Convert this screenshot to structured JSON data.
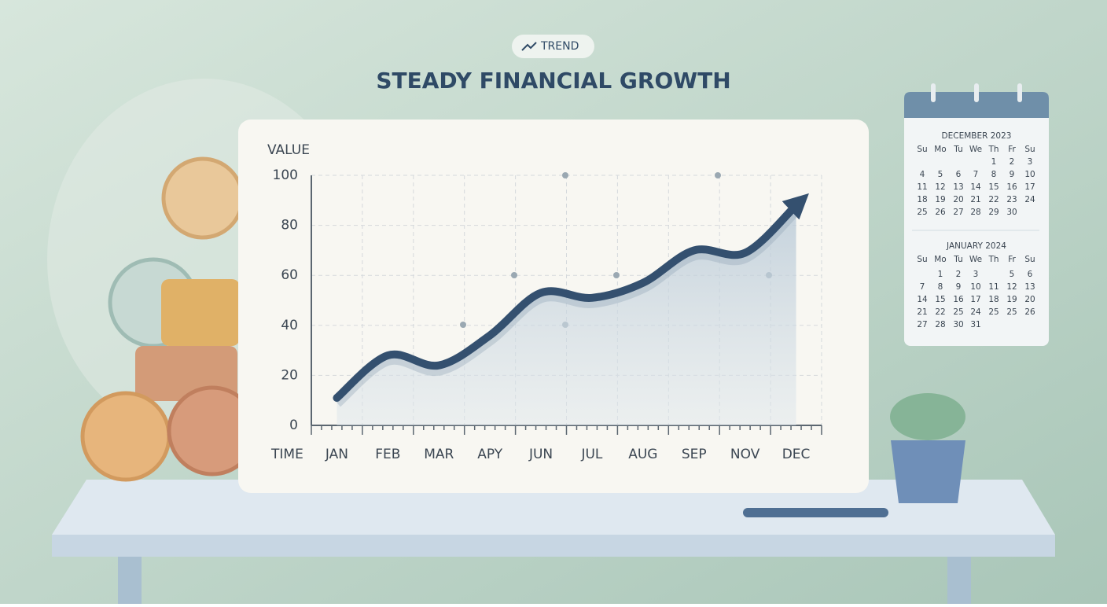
{
  "badge": "TREND",
  "chart_data": {
    "type": "line",
    "title": "STEADY FINANCIAL GROWTH",
    "y_label": "VALUE",
    "x_label": "TIME",
    "categories": [
      "JAN",
      "FEB",
      "MAR",
      "APY",
      "JUN",
      "JUL",
      "AUG",
      "SEP",
      "NOV",
      "DEC"
    ],
    "series": [
      {
        "color": "#34506f",
        "values": [
          11,
          28,
          24,
          36,
          53,
          51,
          57,
          70,
          69,
          88
        ]
      }
    ],
    "ylim": [
      0,
      100
    ],
    "yticks": [
      0,
      20,
      40,
      60,
      80,
      100
    ],
    "grid": true
  },
  "calendars": [
    {
      "title": "DECEMBER 2023",
      "weekdays": [
        "Su",
        "Mo",
        "Tu",
        "We",
        "Th",
        "Fr",
        "Su"
      ],
      "weeks": [
        [
          null,
          null,
          null,
          null,
          "1",
          "2",
          "3"
        ],
        [
          "4",
          "5",
          "6",
          "7",
          "8",
          "9",
          "10"
        ],
        [
          "11",
          "12",
          "13",
          "14",
          "15",
          "16",
          "17"
        ],
        [
          "18",
          "19",
          "20",
          "21",
          "22",
          "23",
          "24"
        ],
        [
          "25",
          "26",
          "27",
          "28",
          "29",
          "30",
          null
        ]
      ]
    },
    {
      "title": "JANUARY 2024",
      "weekdays": [
        "Su",
        "Mo",
        "Tu",
        "We",
        "Th",
        "Fr",
        "Su"
      ],
      "weeks": [
        [
          null,
          "1",
          "2",
          "3",
          null,
          "5",
          "6"
        ],
        [
          "7",
          "8",
          "9",
          "10",
          "11",
          "12",
          "13"
        ],
        [
          "14",
          "15",
          "16",
          "17",
          "18",
          "19",
          "20"
        ],
        [
          "21",
          "22",
          "25",
          "24",
          "25",
          "25",
          "26"
        ],
        [
          "27",
          "28",
          "30",
          "31",
          null,
          null,
          null
        ]
      ]
    }
  ]
}
